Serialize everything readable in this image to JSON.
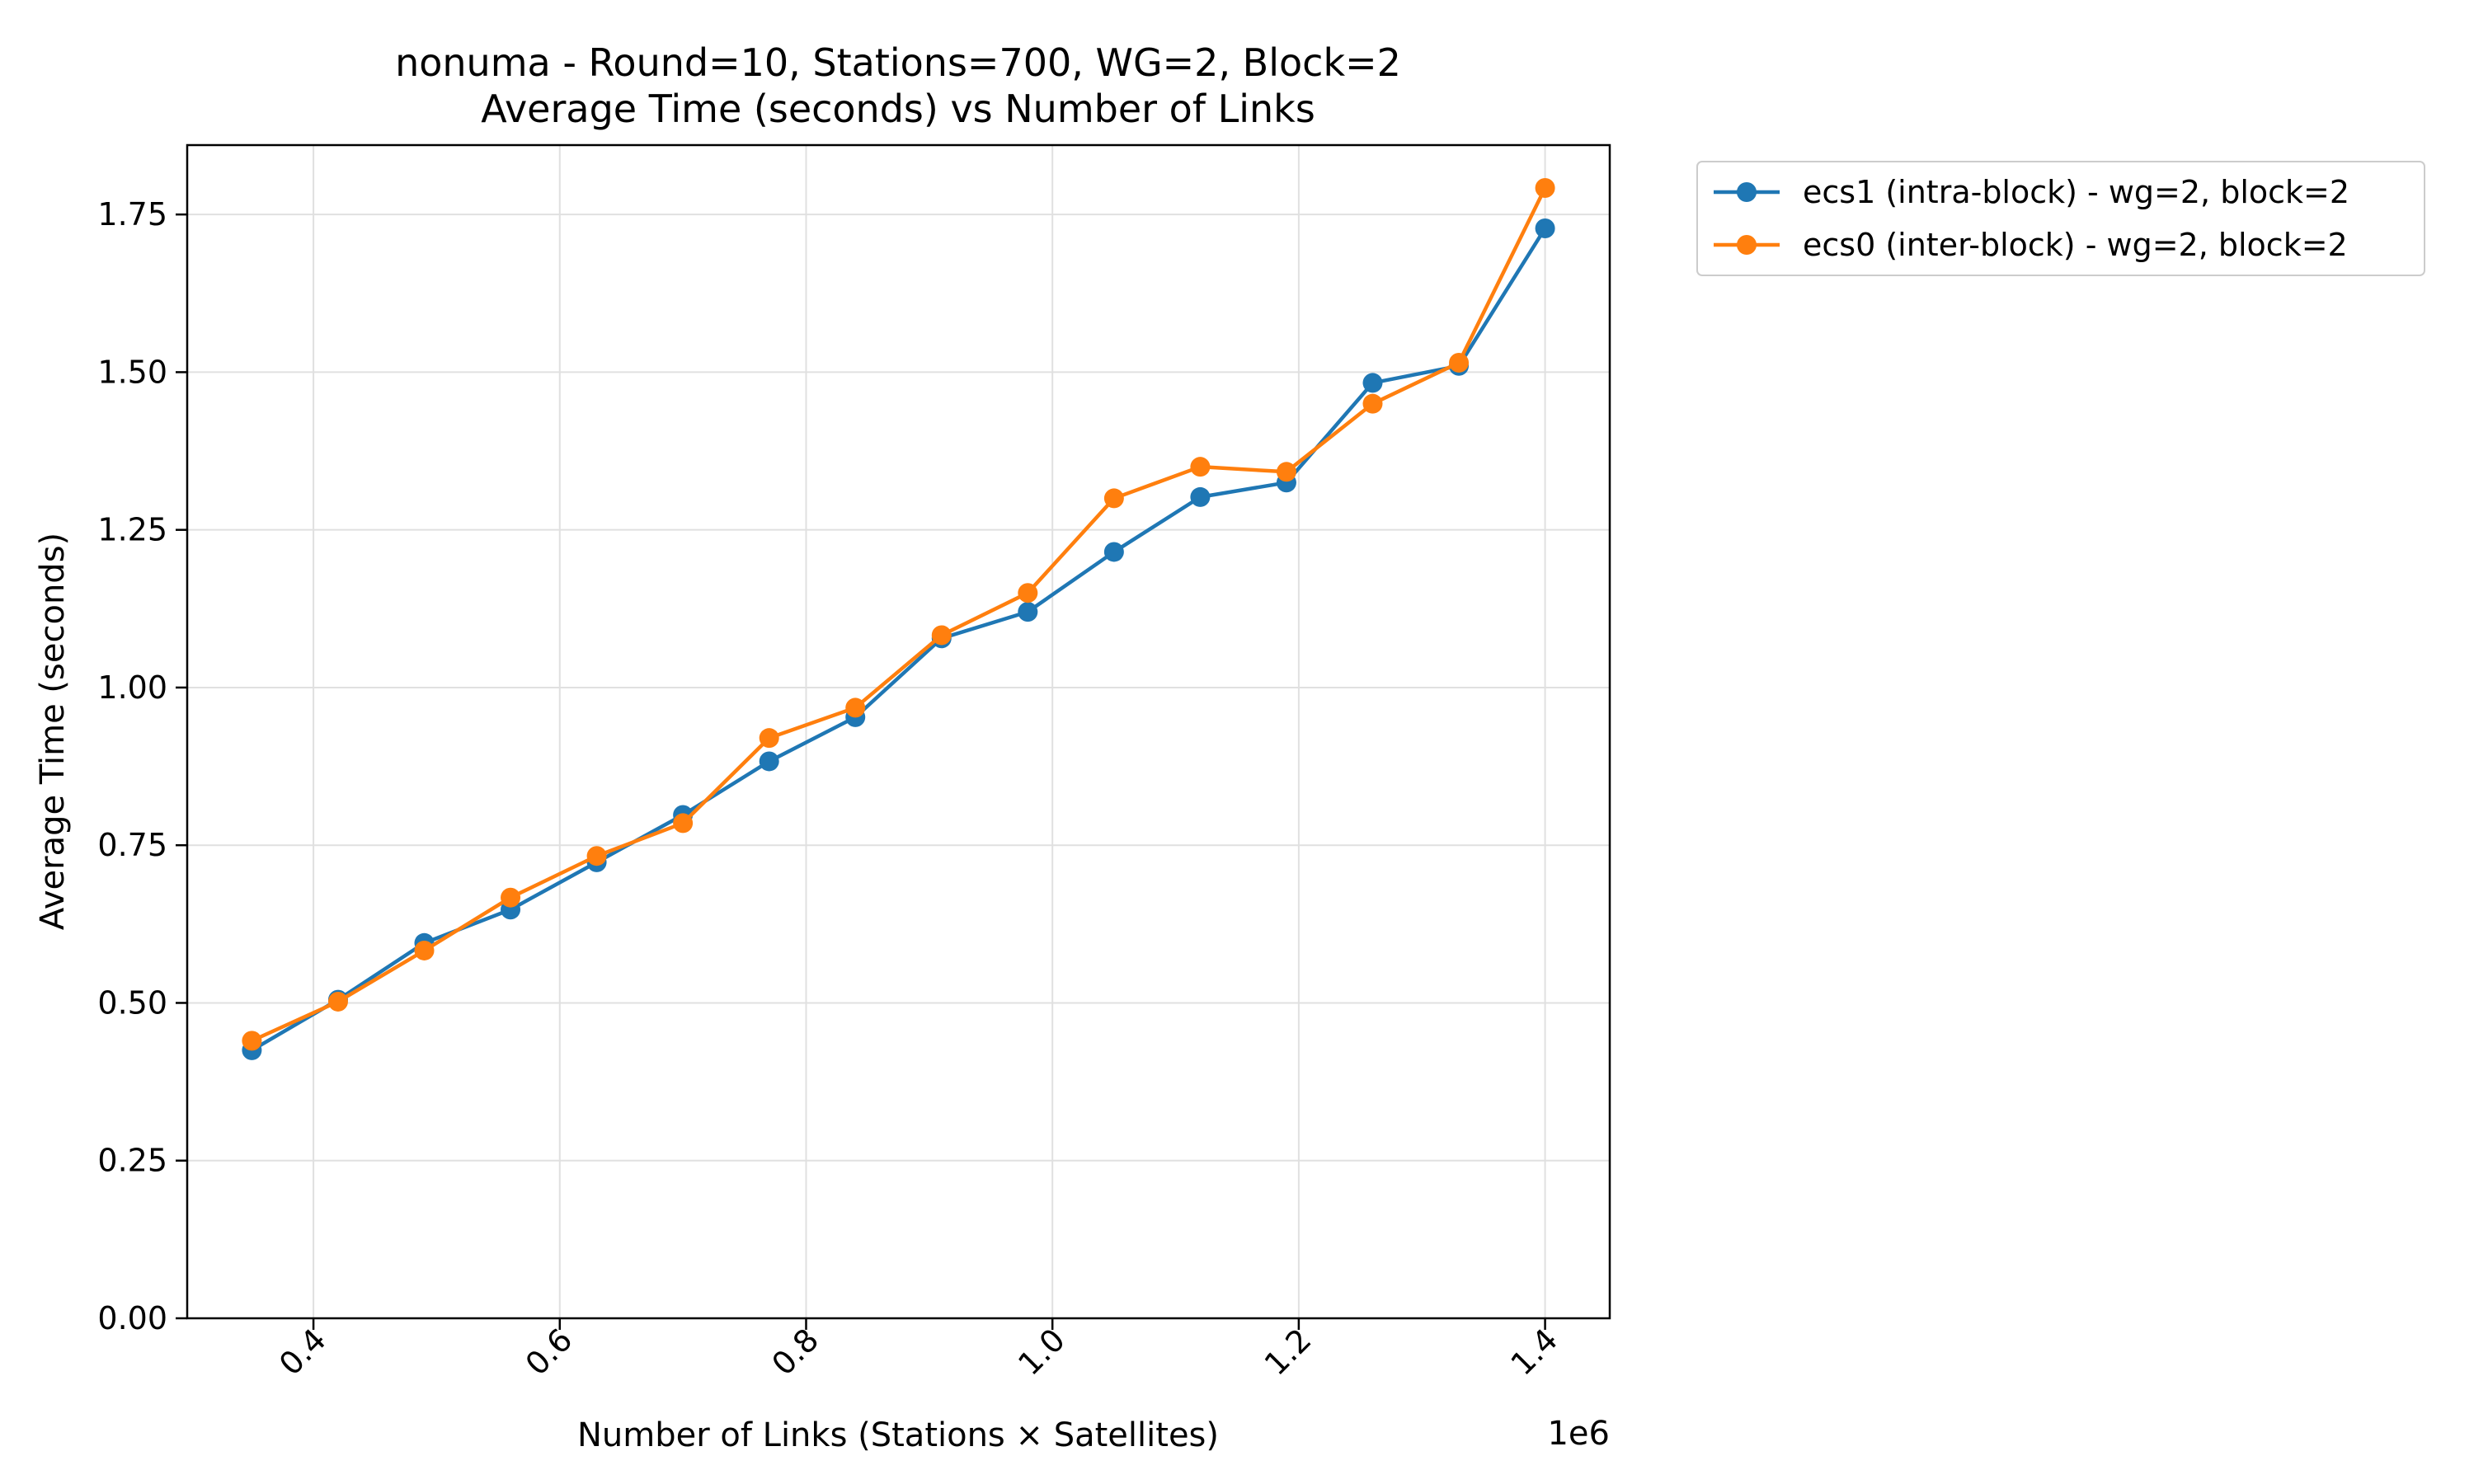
{
  "chart_data": {
    "type": "line",
    "title": "nonuma - Round=10, Stations=700, WG=2, Block=2",
    "subtitle": "Average Time (seconds) vs Number of Links",
    "xlabel": "Number of Links (Stations × Satellites)",
    "ylabel": "Average Time (seconds)",
    "x_offset_label": "1e6",
    "x_scale": 1000000,
    "xlim": [
      0.2975,
      1.4525
    ],
    "ylim": [
      0,
      1.86
    ],
    "x_ticks": [
      0.4,
      0.6,
      0.8,
      1.0,
      1.2,
      1.4
    ],
    "x_tick_labels": [
      "0.4",
      "0.6",
      "0.8",
      "1.0",
      "1.2",
      "1.4"
    ],
    "y_ticks": [
      0,
      0.25,
      0.5,
      0.75,
      1.0,
      1.25,
      1.5,
      1.75
    ],
    "y_tick_labels": [
      "0.00",
      "0.25",
      "0.50",
      "0.75",
      "1.00",
      "1.25",
      "1.50",
      "1.75"
    ],
    "grid": true,
    "legend_position": "outside-top-right",
    "x": [
      0.35,
      0.42,
      0.49,
      0.56,
      0.63,
      0.7,
      0.77,
      0.84,
      0.91,
      0.98,
      1.05,
      1.12,
      1.19,
      1.26,
      1.33,
      1.4
    ],
    "series": [
      {
        "name": "ecs1 (intra-block) - wg=2, block=2",
        "color": "#1f77b4",
        "values": [
          0.425,
          0.505,
          0.595,
          0.648,
          0.723,
          0.798,
          0.883,
          0.953,
          1.078,
          1.12,
          1.215,
          1.302,
          1.325,
          1.483,
          1.51,
          1.728
        ]
      },
      {
        "name": "ecs0 (inter-block) - wg=2, block=2",
        "color": "#ff7f0e",
        "values": [
          0.44,
          0.502,
          0.583,
          0.667,
          0.733,
          0.785,
          0.92,
          0.968,
          1.083,
          1.15,
          1.3,
          1.35,
          1.342,
          1.45,
          1.515,
          1.792
        ]
      }
    ]
  }
}
